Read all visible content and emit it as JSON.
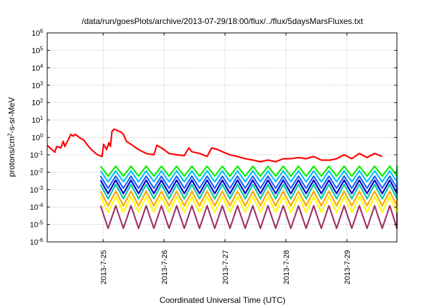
{
  "chart_data": {
    "type": "line",
    "title": "/data/run/goesPlots/archive/2013-07-29/18:00/flux/../flux/5daysMarsFluxes.txt",
    "xlabel": "Coordinated Universal Time (UTC)",
    "ylabel": "protons/cm2-s-sr-MeV",
    "ylabel_parts": {
      "before": "protons/cm",
      "sup": "2",
      "after": "-s-sr-MeV"
    },
    "y_scale": "log",
    "ylim_exponents": [
      -6,
      6
    ],
    "y_ticks": [
      {
        "base": "10",
        "exp": "-6"
      },
      {
        "base": "10",
        "exp": "-5"
      },
      {
        "base": "10",
        "exp": "-4"
      },
      {
        "base": "10",
        "exp": "-3"
      },
      {
        "base": "10",
        "exp": "-2"
      },
      {
        "base": "10",
        "exp": "-1"
      },
      {
        "base": "10",
        "exp": "0"
      },
      {
        "base": "10",
        "exp": "1"
      },
      {
        "base": "10",
        "exp": "2"
      },
      {
        "base": "10",
        "exp": "3"
      },
      {
        "base": "10",
        "exp": "4"
      },
      {
        "base": "10",
        "exp": "5"
      },
      {
        "base": "10",
        "exp": "6"
      }
    ],
    "x_range_days": [
      "2013-07-24 02:00",
      "2013-07-29 18:00"
    ],
    "x_ticks": [
      "2013-7-25",
      "2013-7-26",
      "2013-7-27",
      "2013-7-28",
      "2013-7-29"
    ],
    "grid": true,
    "series": [
      {
        "color": "#ff0000",
        "points": [
          [
            0.0,
            0.35
          ],
          [
            0.25,
            0.22
          ],
          [
            0.5,
            0.14
          ],
          [
            0.62,
            0.3
          ],
          [
            0.9,
            0.25
          ],
          [
            1.05,
            0.6
          ],
          [
            1.15,
            0.3
          ],
          [
            1.4,
            0.8
          ],
          [
            1.55,
            1.5
          ],
          [
            1.7,
            1.2
          ],
          [
            1.85,
            1.5
          ],
          [
            2.1,
            1.0
          ],
          [
            2.4,
            0.7
          ],
          [
            2.6,
            0.4
          ],
          [
            2.9,
            0.2
          ],
          [
            3.3,
            0.1
          ],
          [
            3.6,
            0.08
          ],
          [
            3.7,
            0.4
          ],
          [
            3.9,
            0.2
          ],
          [
            4.05,
            0.5
          ],
          [
            4.15,
            0.3
          ],
          [
            4.25,
            2.2
          ],
          [
            4.4,
            3.0
          ],
          [
            4.6,
            2.5
          ],
          [
            4.85,
            2.0
          ],
          [
            5.0,
            1.5
          ],
          [
            5.2,
            0.6
          ],
          [
            5.6,
            0.35
          ],
          [
            6.0,
            0.2
          ],
          [
            6.5,
            0.12
          ],
          [
            7.0,
            0.1
          ],
          [
            7.2,
            0.35
          ],
          [
            7.5,
            0.25
          ],
          [
            8.0,
            0.12
          ],
          [
            8.5,
            0.1
          ],
          [
            9.0,
            0.09
          ],
          [
            9.3,
            0.25
          ],
          [
            9.5,
            0.15
          ],
          [
            10.0,
            0.12
          ],
          [
            10.5,
            0.08
          ],
          [
            10.8,
            0.25
          ],
          [
            11.2,
            0.2
          ],
          [
            11.5,
            0.15
          ],
          [
            12.0,
            0.1
          ],
          [
            12.5,
            0.08
          ],
          [
            13.0,
            0.06
          ],
          [
            13.5,
            0.05
          ],
          [
            14.0,
            0.04
          ],
          [
            14.5,
            0.05
          ],
          [
            15.0,
            0.04
          ],
          [
            15.5,
            0.06
          ],
          [
            16.0,
            0.06
          ],
          [
            16.5,
            0.07
          ],
          [
            17.0,
            0.06
          ],
          [
            17.5,
            0.08
          ],
          [
            18.0,
            0.05
          ],
          [
            18.6,
            0.05
          ],
          [
            19.0,
            0.06
          ],
          [
            19.5,
            0.1
          ],
          [
            20.0,
            0.06
          ],
          [
            20.5,
            0.12
          ],
          [
            21.0,
            0.07
          ],
          [
            21.5,
            0.12
          ],
          [
            22.0,
            0.08
          ]
        ]
      },
      {
        "color": "#00ee00",
        "high": 0.022,
        "low": 0.006
      },
      {
        "color": "#00bfff",
        "high": 0.012,
        "low": 0.0028
      },
      {
        "color": "#2060ff",
        "high": 0.006,
        "low": 0.0012
      },
      {
        "color": "#0000cd",
        "high": 0.0035,
        "low": 0.0006
      },
      {
        "color": "#00c8a0",
        "high": 0.002,
        "low": 0.0003
      },
      {
        "color": "#ffa500",
        "high": 0.0008,
        "low": 0.00012
      },
      {
        "color": "#ffff00",
        "high": 0.0004,
        "low": 5e-05
      },
      {
        "color": "#a0306a",
        "high": 0.00012,
        "low": 6e-06
      }
    ]
  }
}
